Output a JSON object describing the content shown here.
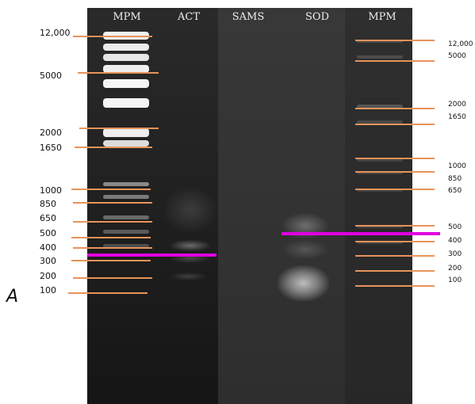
{
  "figure_letter": "A",
  "lanes": [
    "MPM",
    "ACT",
    "SAMS",
    "SOD",
    "MPM"
  ],
  "left_ladder": [
    "12,000",
    "5000",
    "2000",
    "1650",
    "1000",
    "850",
    "650",
    "500",
    "400",
    "300",
    "200",
    "100"
  ],
  "right_ladder": [
    "12,000",
    "5000",
    "2000",
    "1650",
    "1000",
    "850",
    "650",
    "500",
    "400",
    "300",
    "200",
    "100"
  ],
  "colors": {
    "marker_lines": "#e8935a",
    "highlight_lines": "#e000e0",
    "gel_background": "#1a1a1a"
  }
}
